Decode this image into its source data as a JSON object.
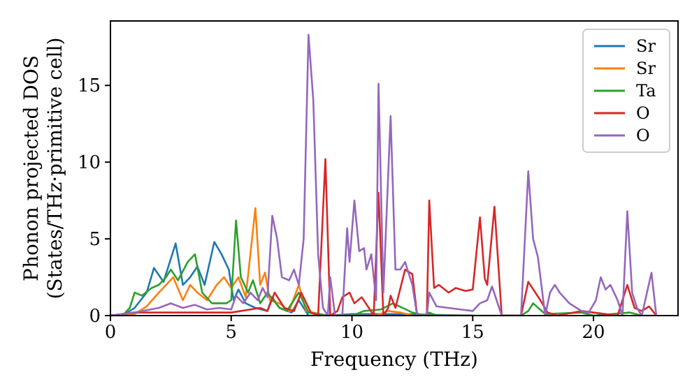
{
  "chart_data": {
    "type": "line",
    "xlabel": "Frequency (THz)",
    "ylabel": "Phonon projected DOS\n(States/THz·primitive cell)",
    "xlim": [
      0,
      23.5
    ],
    "ylim": [
      0,
      19.2
    ],
    "xticks": [
      0,
      5,
      10,
      15,
      20
    ],
    "yticks": [
      0,
      5,
      10,
      15
    ],
    "legend": "top right",
    "grid": false,
    "series": [
      {
        "name": "Sr",
        "color": "#1f77b4",
        "x": [
          0,
          0.5,
          1.0,
          1.5,
          1.8,
          2.2,
          2.5,
          2.7,
          3.0,
          3.3,
          3.6,
          3.9,
          4.3,
          4.6,
          4.9,
          5.1,
          5.3,
          5.6,
          6.0,
          6.5,
          6.7,
          7.0,
          7.5,
          7.8,
          8.2,
          9.0,
          10.0,
          12.0,
          15.0
        ],
        "values": [
          0,
          0,
          0.5,
          1.5,
          3.1,
          2.2,
          3.7,
          4.7,
          2.0,
          2.5,
          3.2,
          2.0,
          4.8,
          4.0,
          3.0,
          1.0,
          1.7,
          0.8,
          0.5,
          0.3,
          1.2,
          0.5,
          0.2,
          1.0,
          0,
          0,
          0.1,
          0.1,
          0
        ]
      },
      {
        "name": "Sr",
        "color": "#ff7f0e",
        "x": [
          0,
          1.0,
          1.5,
          2.0,
          2.3,
          2.6,
          3.0,
          3.3,
          3.6,
          4.0,
          4.4,
          4.7,
          5.0,
          5.3,
          5.6,
          6.0,
          6.2,
          6.4,
          6.6,
          7.0,
          7.4,
          7.8,
          8.1,
          9.0,
          11.0,
          11.5,
          12.0,
          12.5,
          15.0
        ],
        "values": [
          0,
          0.1,
          0.6,
          1.5,
          2.0,
          2.5,
          1.0,
          2.0,
          1.5,
          1.0,
          2.0,
          2.5,
          1.8,
          2.5,
          1.2,
          7.0,
          2.0,
          2.8,
          1.0,
          0.8,
          0.3,
          2.0,
          0.3,
          0,
          0,
          0.3,
          0.2,
          0,
          0
        ]
      },
      {
        "name": "Ta",
        "color": "#2ca02c",
        "x": [
          0,
          0.5,
          0.8,
          1.0,
          1.3,
          1.7,
          2.0,
          2.3,
          2.5,
          2.8,
          3.2,
          3.5,
          3.8,
          4.2,
          4.8,
          5.0,
          5.2,
          5.4,
          5.7,
          5.9,
          6.2,
          6.5,
          7.0,
          7.3,
          7.8,
          8.2,
          9.0,
          10.0,
          10.5,
          11.2,
          11.7,
          12.5,
          13.0,
          13.2,
          13.5,
          17.0,
          17.3,
          17.5,
          18.0,
          19.5,
          20.0,
          21.5,
          22.0,
          22.6
        ],
        "values": [
          0,
          0,
          0.5,
          1.5,
          1.3,
          1.8,
          2.0,
          2.5,
          3.0,
          2.3,
          3.5,
          4.0,
          1.5,
          0.8,
          0.8,
          1.0,
          6.2,
          2.5,
          1.5,
          2.3,
          0.8,
          1.5,
          0.5,
          0.3,
          1.5,
          0.2,
          0,
          0,
          0.3,
          0.4,
          0.8,
          0.2,
          0,
          0.2,
          0,
          0,
          0.3,
          0.8,
          0.1,
          0.2,
          0,
          0.2,
          0,
          0
        ]
      },
      {
        "name": "O",
        "color": "#d62728",
        "x": [
          0,
          1.0,
          3.0,
          5.0,
          6.2,
          6.5,
          6.8,
          7.2,
          7.6,
          7.9,
          8.3,
          8.6,
          8.9,
          9.1,
          9.4,
          9.6,
          9.9,
          10.1,
          10.4,
          10.7,
          10.9,
          11.1,
          11.3,
          11.5,
          11.6,
          11.8,
          12.2,
          12.5,
          12.7,
          13.1,
          13.2,
          13.4,
          13.6,
          14.0,
          14.3,
          14.7,
          15.0,
          15.3,
          15.5,
          15.6,
          15.9,
          16.2,
          17.0,
          17.3,
          17.8,
          18.1,
          18.5,
          19.5,
          20.0,
          21.0,
          21.4,
          21.7,
          22.0,
          22.3,
          22.6
        ],
        "values": [
          0,
          0.2,
          0.2,
          0.2,
          0.5,
          0.3,
          1.5,
          0.5,
          0.3,
          1.5,
          0.2,
          0,
          10.2,
          0,
          0.3,
          1.2,
          1.5,
          0.8,
          1.2,
          0.5,
          0,
          8.0,
          0,
          0.5,
          1.3,
          0.5,
          3.0,
          2.7,
          0,
          0,
          7.5,
          1.8,
          2.0,
          1.5,
          1.8,
          1.6,
          1.7,
          6.4,
          2.4,
          2.0,
          7.1,
          0,
          0,
          2.2,
          1.0,
          0.2,
          0,
          0.3,
          0.2,
          0,
          2.0,
          0.5,
          0.3,
          0.6,
          0
        ]
      },
      {
        "name": "O",
        "color": "#9467bd",
        "x": [
          0,
          1.0,
          2.0,
          2.5,
          3.0,
          3.5,
          4.0,
          4.5,
          5.0,
          5.2,
          5.5,
          5.8,
          6.1,
          6.3,
          6.5,
          6.7,
          6.9,
          7.1,
          7.4,
          7.6,
          7.8,
          8.0,
          8.2,
          8.4,
          8.6,
          8.8,
          9.0,
          9.1,
          9.3,
          9.6,
          9.8,
          9.9,
          10.1,
          10.3,
          10.5,
          10.6,
          10.8,
          11.0,
          11.1,
          11.3,
          11.6,
          11.8,
          12.0,
          12.2,
          12.5,
          12.7,
          13.1,
          13.2,
          13.5,
          14.0,
          14.5,
          15.0,
          15.3,
          15.6,
          15.8,
          16.2,
          17.0,
          17.3,
          17.5,
          17.7,
          18.0,
          18.2,
          18.4,
          18.6,
          19.0,
          19.5,
          19.8,
          20.1,
          20.3,
          20.5,
          20.7,
          21.0,
          21.2,
          21.4,
          21.6,
          21.8,
          22.0,
          22.4,
          22.6
        ],
        "values": [
          0,
          0.2,
          0.5,
          0.8,
          0.5,
          0.7,
          0.4,
          0.5,
          0.4,
          1.3,
          0.8,
          1.5,
          1.0,
          1.8,
          1.2,
          6.5,
          5.0,
          2.5,
          2.3,
          3.0,
          2.0,
          5.0,
          18.3,
          14.0,
          4.0,
          0.5,
          0,
          2.5,
          0,
          0,
          5.7,
          3.5,
          7.5,
          4.2,
          4.4,
          3.0,
          4.0,
          1.0,
          15.1,
          1.5,
          13.0,
          3.0,
          3.0,
          3.5,
          2.0,
          0,
          0,
          1.5,
          0.6,
          0.5,
          0.4,
          0.3,
          0.8,
          1.0,
          1.9,
          0,
          0,
          9.4,
          5.0,
          3.8,
          0,
          1.5,
          2.0,
          1.5,
          0.8,
          0.3,
          0.2,
          1.0,
          2.5,
          1.7,
          2.0,
          1.0,
          0,
          6.8,
          1.5,
          0.5,
          0,
          2.8,
          0
        ]
      }
    ]
  }
}
